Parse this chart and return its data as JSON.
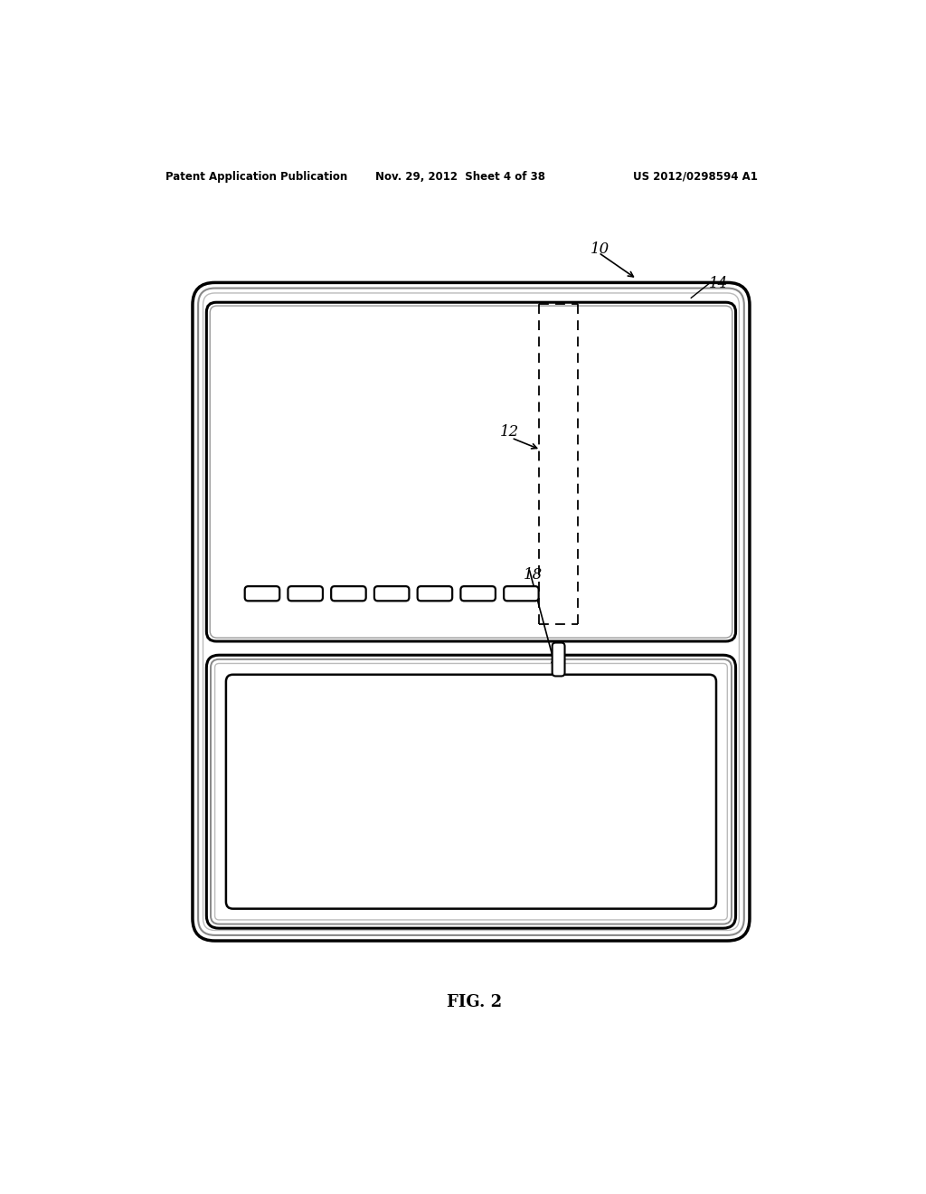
{
  "bg_color": "#ffffff",
  "line_color": "#000000",
  "fig_width": 10.24,
  "fig_height": 13.2,
  "header_text_left": "Patent Application Publication",
  "header_text_mid": "Nov. 29, 2012  Sheet 4 of 38",
  "header_text_right": "US 2012/0298594 A1",
  "fig_label": "FIG. 2",
  "label_10": "10",
  "label_12": "12",
  "label_14": "14",
  "label_18": "18"
}
